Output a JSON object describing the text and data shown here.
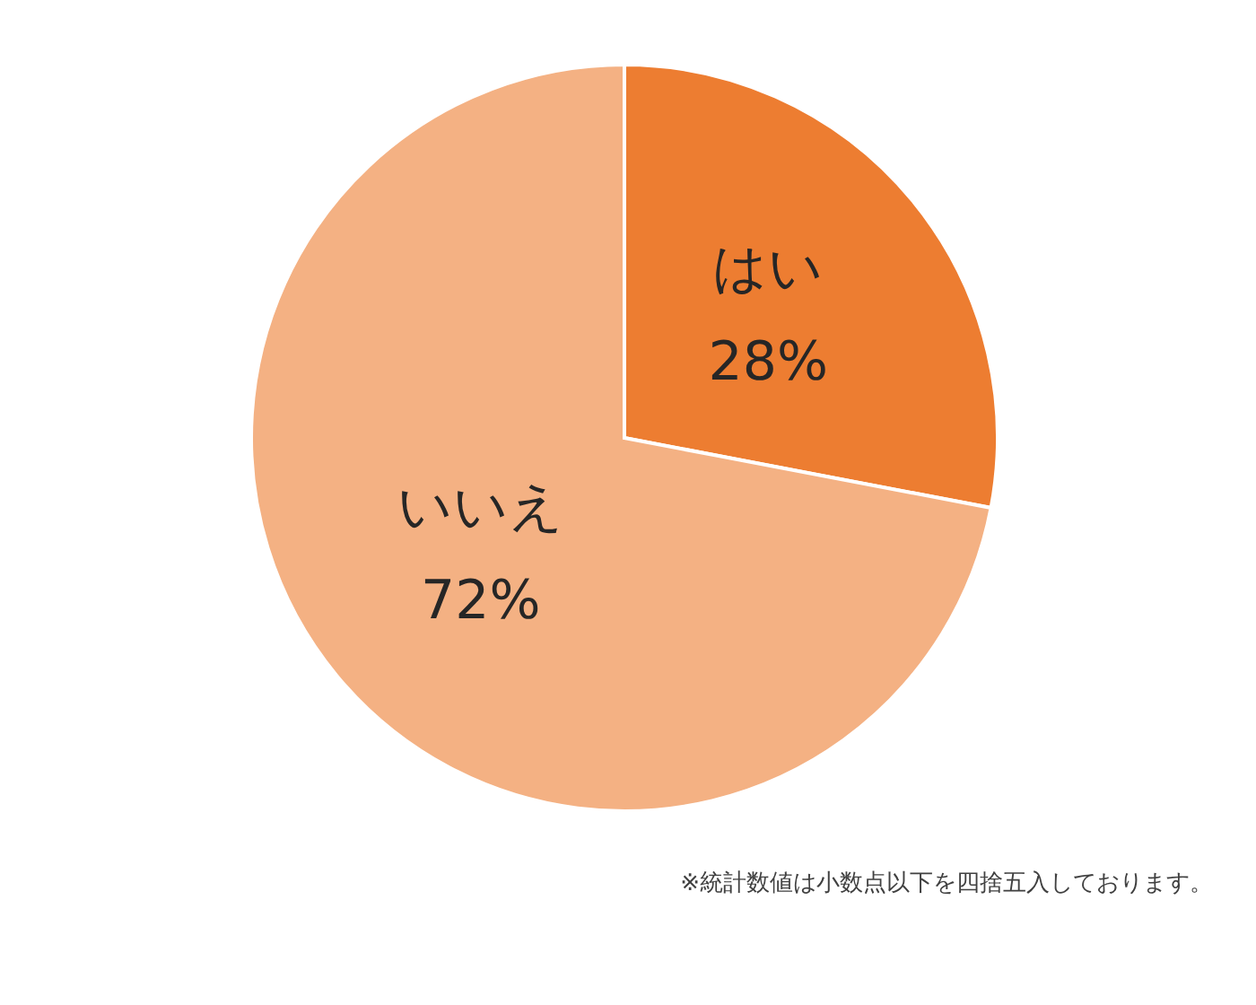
{
  "chart_data": {
    "type": "pie",
    "categories": [
      "はい",
      "いいえ"
    ],
    "values": [
      28,
      72
    ],
    "value_labels": [
      "28%",
      "72%"
    ],
    "colors": [
      "#ed7d31",
      "#f4b183"
    ],
    "annotations": [
      "※統計数値は小数点以下を四捨五入しております。"
    ]
  }
}
